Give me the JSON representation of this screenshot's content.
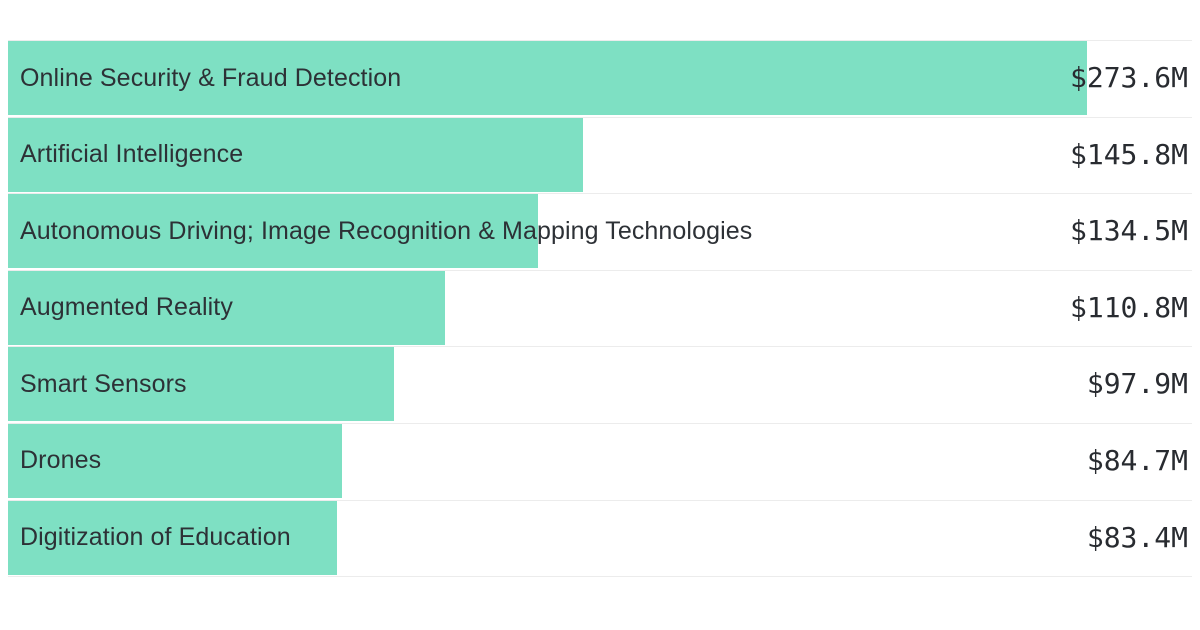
{
  "chart_data": {
    "type": "bar",
    "orientation": "horizontal",
    "title": "",
    "xlabel": "",
    "ylabel": "",
    "grid": false,
    "legend": false,
    "categories": [
      "Online Security & Fraud Detection",
      "Artificial Intelligence",
      "Autonomous Driving; Image Recognition & Mapping Technologies",
      "Augmented Reality",
      "Smart Sensors",
      "Drones",
      "Digitization of Education"
    ],
    "values": [
      273.6,
      145.8,
      134.5,
      110.8,
      97.9,
      84.7,
      83.4
    ],
    "value_labels": [
      "$273.6M",
      "$145.8M",
      "$134.5M",
      "$110.8M",
      "$97.9M",
      "$84.7M",
      "$83.4M"
    ]
  },
  "colors": {
    "bar": "#7ee0c3",
    "label_text": "#2d3136",
    "value_text": "#282b30",
    "separator": "#ececec",
    "background": "#ffffff"
  }
}
